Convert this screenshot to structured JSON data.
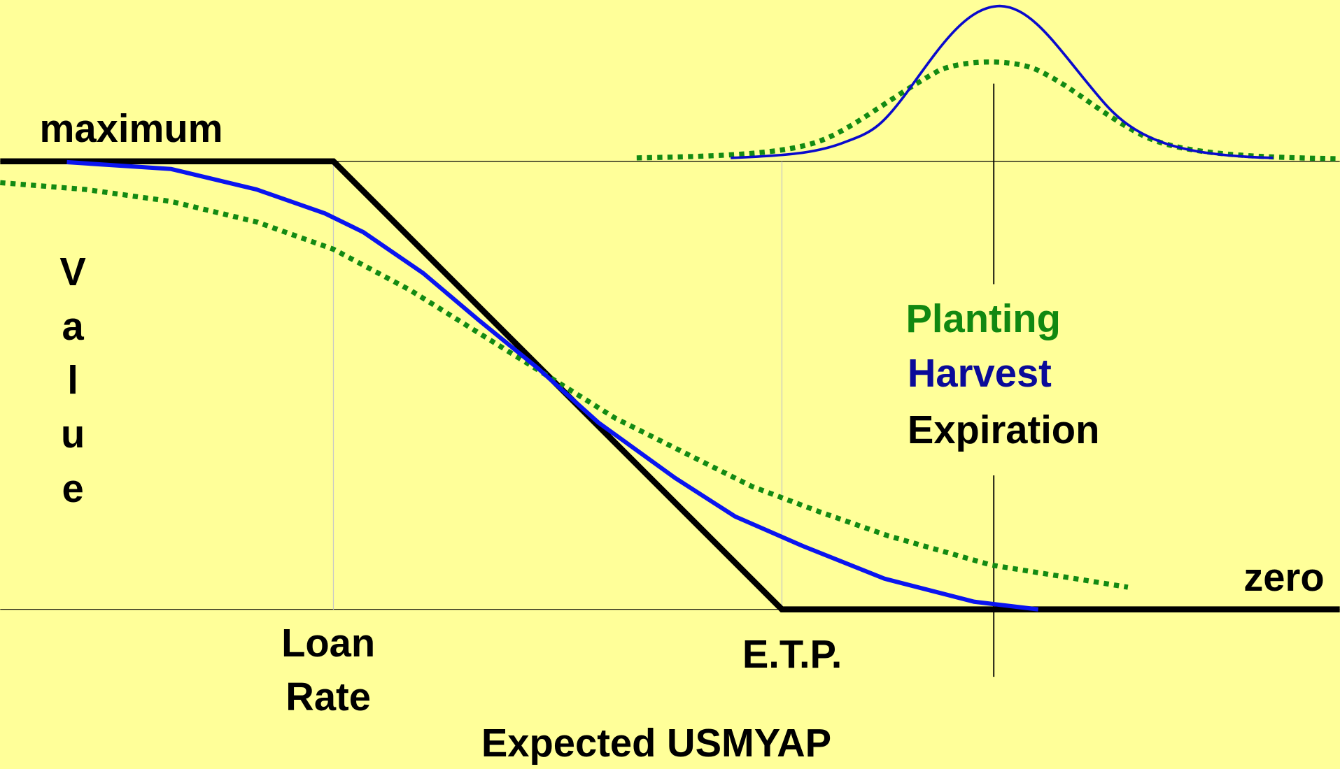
{
  "title": "maximum",
  "y_axis_letters": [
    "V",
    "a",
    "l",
    "u",
    "e"
  ],
  "x_labels": {
    "loan_rate": [
      "Loan",
      "Rate"
    ],
    "etp": "E.T.P."
  },
  "x_axis_title": "Expected USMYAP",
  "bottom_label": "zero",
  "legend": {
    "planting": "Planting",
    "harvest": "Harvest",
    "expiration": "Expiration"
  }
}
